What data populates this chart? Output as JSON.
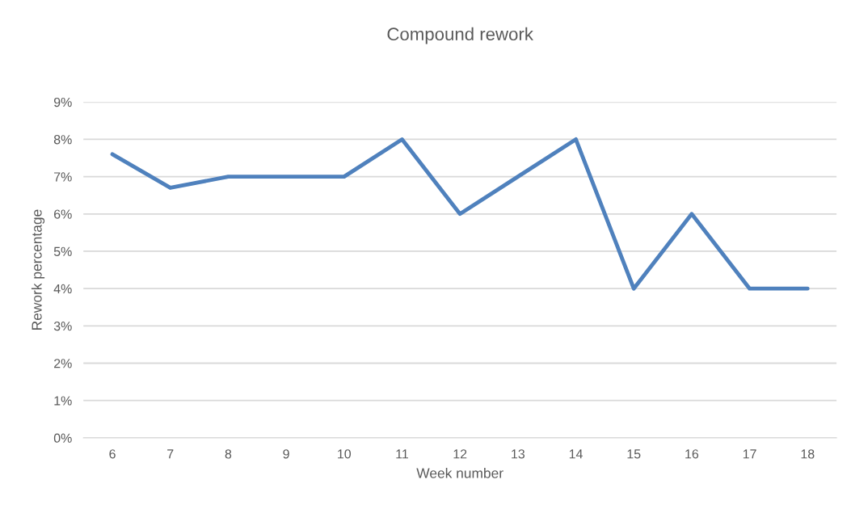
{
  "chart_data": {
    "type": "line",
    "title": "Compound rework",
    "xlabel": "Week number",
    "ylabel": "Rework percentage",
    "categories": [
      "6",
      "7",
      "8",
      "9",
      "10",
      "11",
      "12",
      "13",
      "14",
      "15",
      "16",
      "17",
      "18"
    ],
    "series": [
      {
        "color": "#4f81bd",
        "values": [
          7.6,
          6.7,
          7,
          7,
          7,
          8,
          6,
          7,
          8,
          4,
          6,
          4,
          4
        ]
      }
    ],
    "ylim": [
      0,
      9
    ],
    "yticks": [
      {
        "value": 0,
        "label": "0%"
      },
      {
        "value": 1,
        "label": "1%"
      },
      {
        "value": 2,
        "label": "2%"
      },
      {
        "value": 3,
        "label": "3%"
      },
      {
        "value": 4,
        "label": "4%"
      },
      {
        "value": 5,
        "label": "5%"
      },
      {
        "value": 6,
        "label": "6%"
      },
      {
        "value": 7,
        "label": "7%"
      },
      {
        "value": 8,
        "label": "8%"
      },
      {
        "value": 9,
        "label": "9%"
      }
    ],
    "grid": "y",
    "marker": "none",
    "line_style": "solid"
  }
}
